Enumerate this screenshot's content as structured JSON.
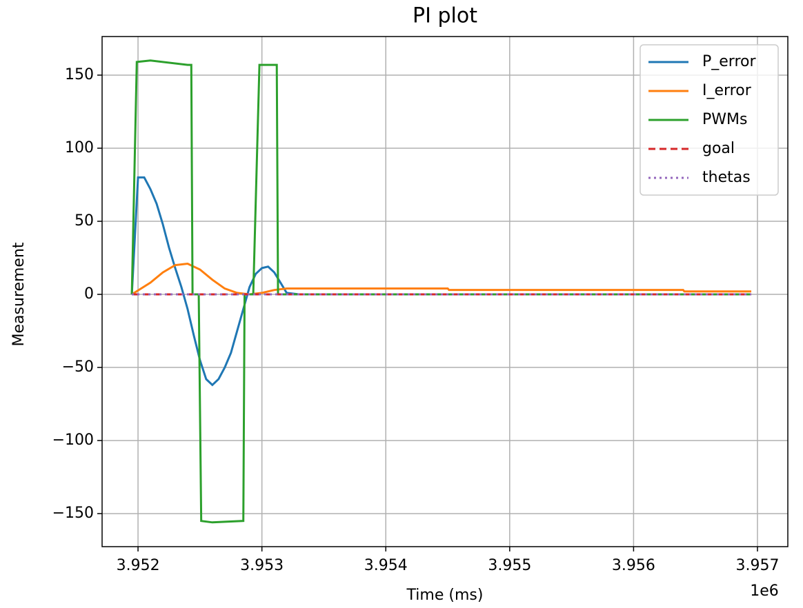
{
  "chart_data": {
    "type": "line",
    "title": "PI plot",
    "x_label": "Time (ms)",
    "y_label": "Measurement",
    "x_offset_label": "1e6",
    "xlim": [
      3951710,
      3957245
    ],
    "ylim": [
      -172.6,
      176.4
    ],
    "xticks": [
      {
        "value": 3952000,
        "label": "3.952"
      },
      {
        "value": 3953000,
        "label": "3.953"
      },
      {
        "value": 3954000,
        "label": "3.954"
      },
      {
        "value": 3955000,
        "label": "3.955"
      },
      {
        "value": 3956000,
        "label": "3.956"
      },
      {
        "value": 3957000,
        "label": "3.957"
      }
    ],
    "yticks": [
      {
        "value": -150,
        "label": "−150"
      },
      {
        "value": -100,
        "label": "−100"
      },
      {
        "value": -50,
        "label": "−50"
      },
      0,
      50,
      100,
      150
    ],
    "grid": true,
    "legend": "upper right",
    "series": [
      {
        "name": "P_error",
        "color": "#1f77b4",
        "linestyle": "solid",
        "x": [
          3951950,
          3952000,
          3952050,
          3952100,
          3952150,
          3952200,
          3952250,
          3952300,
          3952350,
          3952400,
          3952450,
          3952500,
          3952550,
          3952600,
          3952650,
          3952700,
          3952750,
          3952800,
          3952850,
          3952900,
          3952950,
          3953000,
          3953050,
          3953100,
          3953150,
          3953200,
          3953300,
          3956950
        ],
        "values": [
          0,
          80,
          80,
          72,
          62,
          48,
          32,
          18,
          5,
          -10,
          -28,
          -45,
          -58,
          -62,
          -58,
          -50,
          -40,
          -25,
          -10,
          5,
          14,
          18,
          19,
          15,
          8,
          1,
          0,
          0
        ]
      },
      {
        "name": "I_error",
        "color": "#ff7f0e",
        "linestyle": "solid",
        "x": [
          3951950,
          3952100,
          3952200,
          3952300,
          3952400,
          3952500,
          3952600,
          3952700,
          3952800,
          3952900,
          3953000,
          3953100,
          3953200,
          3954500,
          3954510,
          3956400,
          3956410,
          3956950
        ],
        "values": [
          0,
          8,
          15,
          20,
          21,
          17,
          10,
          4,
          1,
          0,
          1,
          3,
          4,
          4,
          3,
          3,
          2,
          2
        ]
      },
      {
        "name": "PWMs",
        "color": "#2ca02c",
        "linestyle": "solid",
        "x": [
          3951950,
          3951990,
          3952100,
          3952400,
          3952430,
          3952440,
          3952490,
          3952510,
          3952600,
          3952850,
          3952860,
          3952930,
          3952980,
          3953120,
          3953130,
          3956950
        ],
        "values": [
          0,
          159,
          160,
          157,
          157,
          0,
          0,
          -155,
          -156,
          -155,
          0,
          0,
          157,
          157,
          0,
          0
        ]
      },
      {
        "name": "goal",
        "color": "#d62728",
        "linestyle": "dashed",
        "x": [
          3951950,
          3956950
        ],
        "values": [
          0,
          0
        ]
      },
      {
        "name": "thetas",
        "color": "#9467bd",
        "linestyle": "dotted",
        "x": [
          3951950,
          3956950
        ],
        "values": [
          0,
          0
        ]
      }
    ]
  }
}
